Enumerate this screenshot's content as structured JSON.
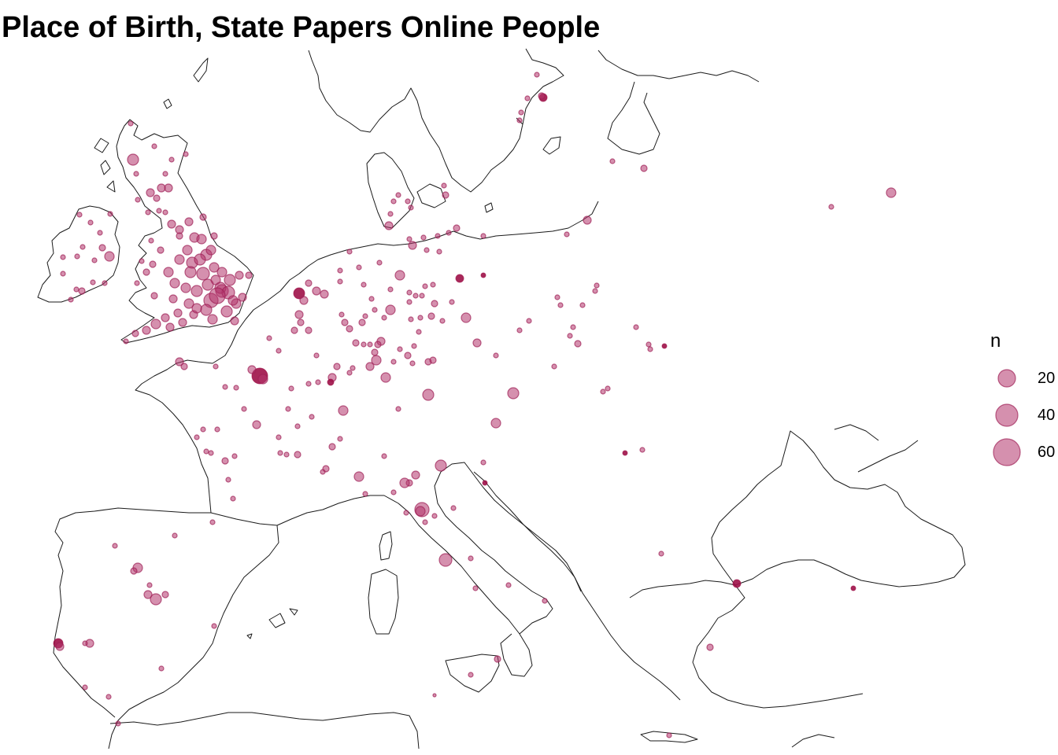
{
  "title": "Place of Birth, State Papers Online People",
  "colors": {
    "point_fill": "#b3356b",
    "point_stroke": "#9e1f55",
    "coast": "#1a1a1a"
  },
  "legend": {
    "title": "n",
    "entries": [
      {
        "label": "20",
        "value": 20
      },
      {
        "label": "40",
        "value": 40
      },
      {
        "label": "60",
        "value": 60
      }
    ]
  },
  "map": {
    "region": "Western and Central Europe",
    "marker": "proportional circles sized by count n",
    "points_shown_as": "places of birth"
  }
}
